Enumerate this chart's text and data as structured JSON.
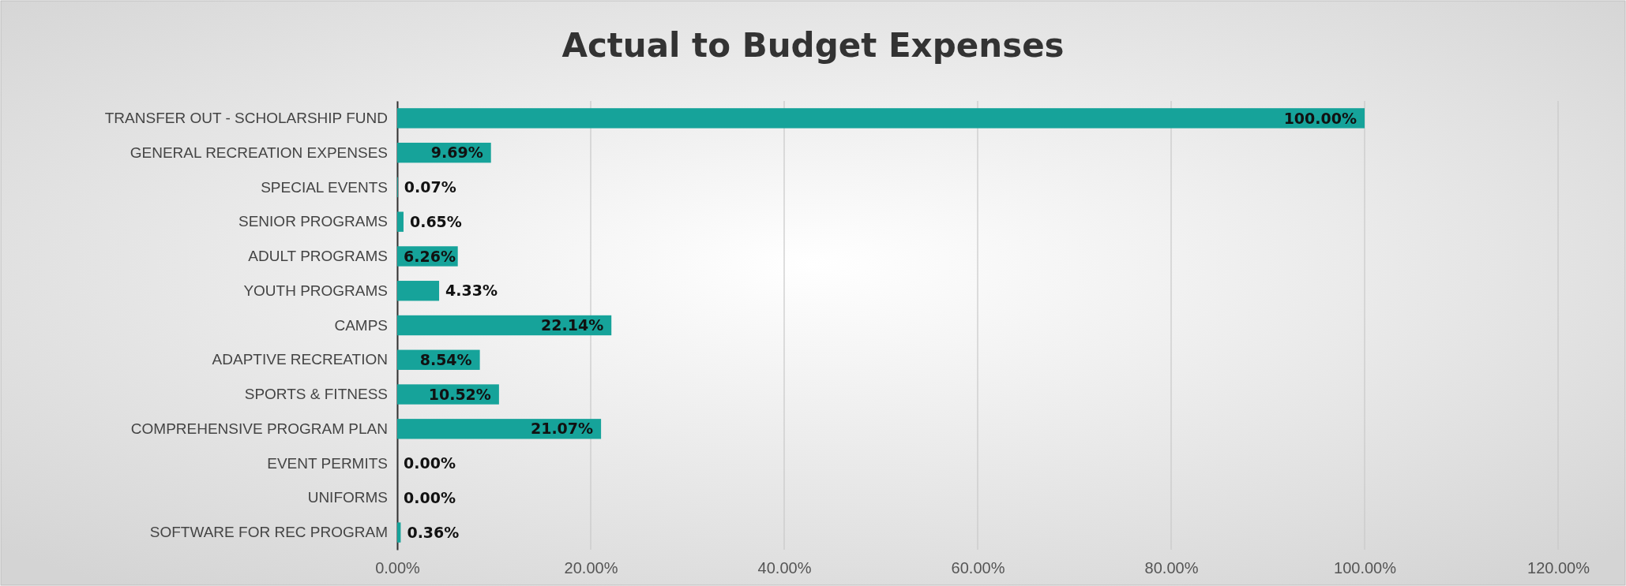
{
  "chart_data": {
    "type": "bar",
    "orientation": "horizontal",
    "title": "Actual to Budget Expenses",
    "categories": [
      "TRANSFER OUT - SCHOLARSHIP FUND",
      "GENERAL RECREATION EXPENSES",
      "SPECIAL EVENTS",
      "SENIOR PROGRAMS",
      "ADULT PROGRAMS",
      "YOUTH PROGRAMS",
      "CAMPS",
      "ADAPTIVE RECREATION",
      "SPORTS & FITNESS",
      "COMPREHENSIVE PROGRAM PLAN",
      "EVENT PERMITS",
      "UNIFORMS",
      "SOFTWARE FOR REC PROGRAM"
    ],
    "values": [
      100,
      9.69,
      0.07,
      0.65,
      6.26,
      4.33,
      22.14,
      8.54,
      10.52,
      21.07,
      0,
      0,
      0.36
    ],
    "value_labels": [
      "100.00%",
      "9.69%",
      "0.07%",
      "0.65%",
      "6.26%",
      "4.33%",
      "22.14%",
      "8.54%",
      "10.52%",
      "21.07%",
      "0.00%",
      "0.00%",
      "0.36%"
    ],
    "color": "#16a39a",
    "xlim": [
      0,
      120
    ],
    "xticks": [
      {
        "value": 0,
        "label": "0.00%"
      },
      {
        "value": 20,
        "label": "20.00%"
      },
      {
        "value": 40,
        "label": "40.00%"
      },
      {
        "value": 60,
        "label": "60.00%"
      },
      {
        "value": 80,
        "label": "80.00%"
      },
      {
        "value": 100,
        "label": "100.00%"
      },
      {
        "value": 120,
        "label": "120.00%"
      }
    ],
    "grid": "x"
  }
}
